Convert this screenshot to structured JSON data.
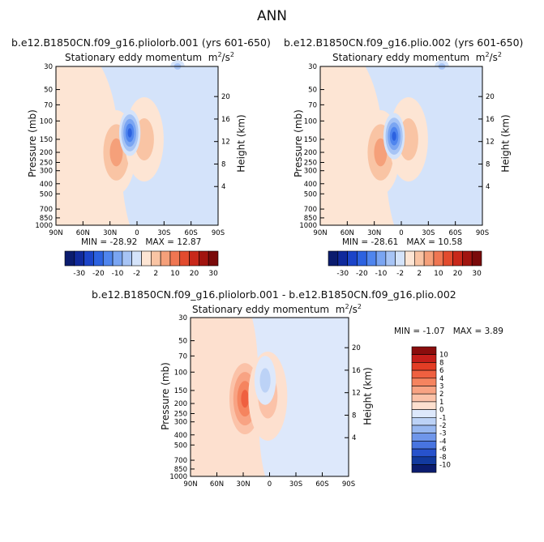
{
  "title": "ANN",
  "panels": [
    {
      "id": "p1",
      "title": "b.e12.B1850CN.f09_g16.pliolorb.001 (yrs 601-650)",
      "subtitle": "Stationary eddy momentum",
      "units_base": "m",
      "units_exp1": "2",
      "units_slash": "/s",
      "units_exp2": "2",
      "min_label": "MIN =",
      "min_value": "-28.92",
      "max_label": "MAX =",
      "max_value": "12.87",
      "ylabel": "Pressure (mb)",
      "y2label": "Height (km)"
    },
    {
      "id": "p2",
      "title": "b.e12.B1850CN.f09_g16.plio.002 (yrs 601-650)",
      "subtitle": "Stationary eddy momentum",
      "units_base": "m",
      "units_exp1": "2",
      "units_slash": "/s",
      "units_exp2": "2",
      "min_label": "MIN =",
      "min_value": "-28.61",
      "max_label": "MAX =",
      "max_value": "10.58",
      "ylabel": "Pressure (mb)",
      "y2label": "Height (km)"
    },
    {
      "id": "p3",
      "title": "b.e12.B1850CN.f09_g16.pliolorb.001 - b.e12.B1850CN.f09_g16.plio.002",
      "subtitle": "Stationary eddy momentum",
      "units_base": "m",
      "units_exp1": "2",
      "units_slash": "/s",
      "units_exp2": "2",
      "min_label": "MIN =",
      "min_value": "-1.07",
      "max_label": "MAX =",
      "max_value": "3.89",
      "ylabel": "Pressure (mb)",
      "y2label": "Height (km)"
    }
  ],
  "chart_data": [
    {
      "type": "heatmap",
      "subtype": "filled-contour",
      "panel": "p1",
      "x_ticks": [
        "90N",
        "60N",
        "30N",
        "0",
        "30S",
        "60S",
        "90S"
      ],
      "y_ticks": [
        "30",
        "50",
        "70",
        "100",
        "150",
        "200",
        "250",
        "300",
        "400",
        "500",
        "700",
        "850",
        "1000"
      ],
      "y2_ticks": [
        "4",
        "8",
        "12",
        "16",
        "20"
      ],
      "features": [
        {
          "sign": "positive",
          "lat": 23,
          "pressure": 200,
          "value": 12.87,
          "label": "max"
        },
        {
          "sign": "positive",
          "lat": -8,
          "pressure": 150,
          "value": 8
        },
        {
          "sign": "negative",
          "lat": 8,
          "pressure": 130,
          "value": -28.92,
          "label": "min"
        },
        {
          "sign": "negative",
          "lat": -45,
          "pressure": 30,
          "value": -6
        }
      ]
    },
    {
      "type": "heatmap",
      "subtype": "filled-contour",
      "panel": "p2",
      "x_ticks": [
        "90N",
        "60N",
        "30N",
        "0",
        "30S",
        "60S",
        "90S"
      ],
      "y_ticks": [
        "30",
        "50",
        "70",
        "100",
        "150",
        "200",
        "250",
        "300",
        "400",
        "500",
        "700",
        "850",
        "1000"
      ],
      "y2_ticks": [
        "4",
        "8",
        "12",
        "16",
        "20"
      ],
      "features": [
        {
          "sign": "positive",
          "lat": 23,
          "pressure": 200,
          "value": 10.58,
          "label": "max"
        },
        {
          "sign": "positive",
          "lat": -8,
          "pressure": 150,
          "value": 8
        },
        {
          "sign": "negative",
          "lat": 8,
          "pressure": 140,
          "value": -28.61,
          "label": "min"
        },
        {
          "sign": "negative",
          "lat": -45,
          "pressure": 30,
          "value": -6
        }
      ]
    },
    {
      "type": "heatmap",
      "subtype": "filled-contour",
      "panel": "p3",
      "x_ticks": [
        "90N",
        "60N",
        "30N",
        "0",
        "30S",
        "60S",
        "90S"
      ],
      "y_ticks": [
        "30",
        "50",
        "70",
        "100",
        "150",
        "200",
        "250",
        "300",
        "400",
        "500",
        "700",
        "850",
        "1000"
      ],
      "y2_ticks": [
        "4",
        "8",
        "12",
        "16",
        "20"
      ],
      "features": [
        {
          "sign": "positive",
          "lat": 28,
          "pressure": 180,
          "value": 3.89,
          "label": "max"
        },
        {
          "sign": "positive",
          "lat": 2,
          "pressure": 170,
          "value": 1
        },
        {
          "sign": "negative",
          "lat": 5,
          "pressure": 120,
          "value": -1.07,
          "label": "min"
        }
      ]
    }
  ],
  "colorbar_main": {
    "orientation": "horizontal",
    "colors": [
      "#0b1c6e",
      "#102a9c",
      "#1b44c8",
      "#2c62e0",
      "#4f85ee",
      "#7aa5f2",
      "#a7c4f5",
      "#d4e3fa",
      "#fde5d4",
      "#f9c4a4",
      "#f5a07a",
      "#ef7652",
      "#e24b2e",
      "#c8281a",
      "#a1140f",
      "#7a0a0a"
    ],
    "labels": [
      "-30",
      "-20",
      "-10",
      "-2",
      "2",
      "10",
      "20",
      "30"
    ]
  },
  "colorbar_diff": {
    "orientation": "vertical",
    "colors": [
      "#8a0d0d",
      "#c41e1a",
      "#e33d25",
      "#ef6040",
      "#f5845f",
      "#f8a383",
      "#fbc2a8",
      "#fde0cf",
      "#dde8fb",
      "#bcd2f6",
      "#97b7f0",
      "#6f96ea",
      "#4874e0",
      "#2752cc",
      "#123a9e",
      "#0b1c6e"
    ],
    "labels": [
      "10",
      "8",
      "6",
      "4",
      "3",
      "2",
      "1",
      "0",
      "-1",
      "-2",
      "-3",
      "-4",
      "-6",
      "-8",
      "-10"
    ]
  }
}
